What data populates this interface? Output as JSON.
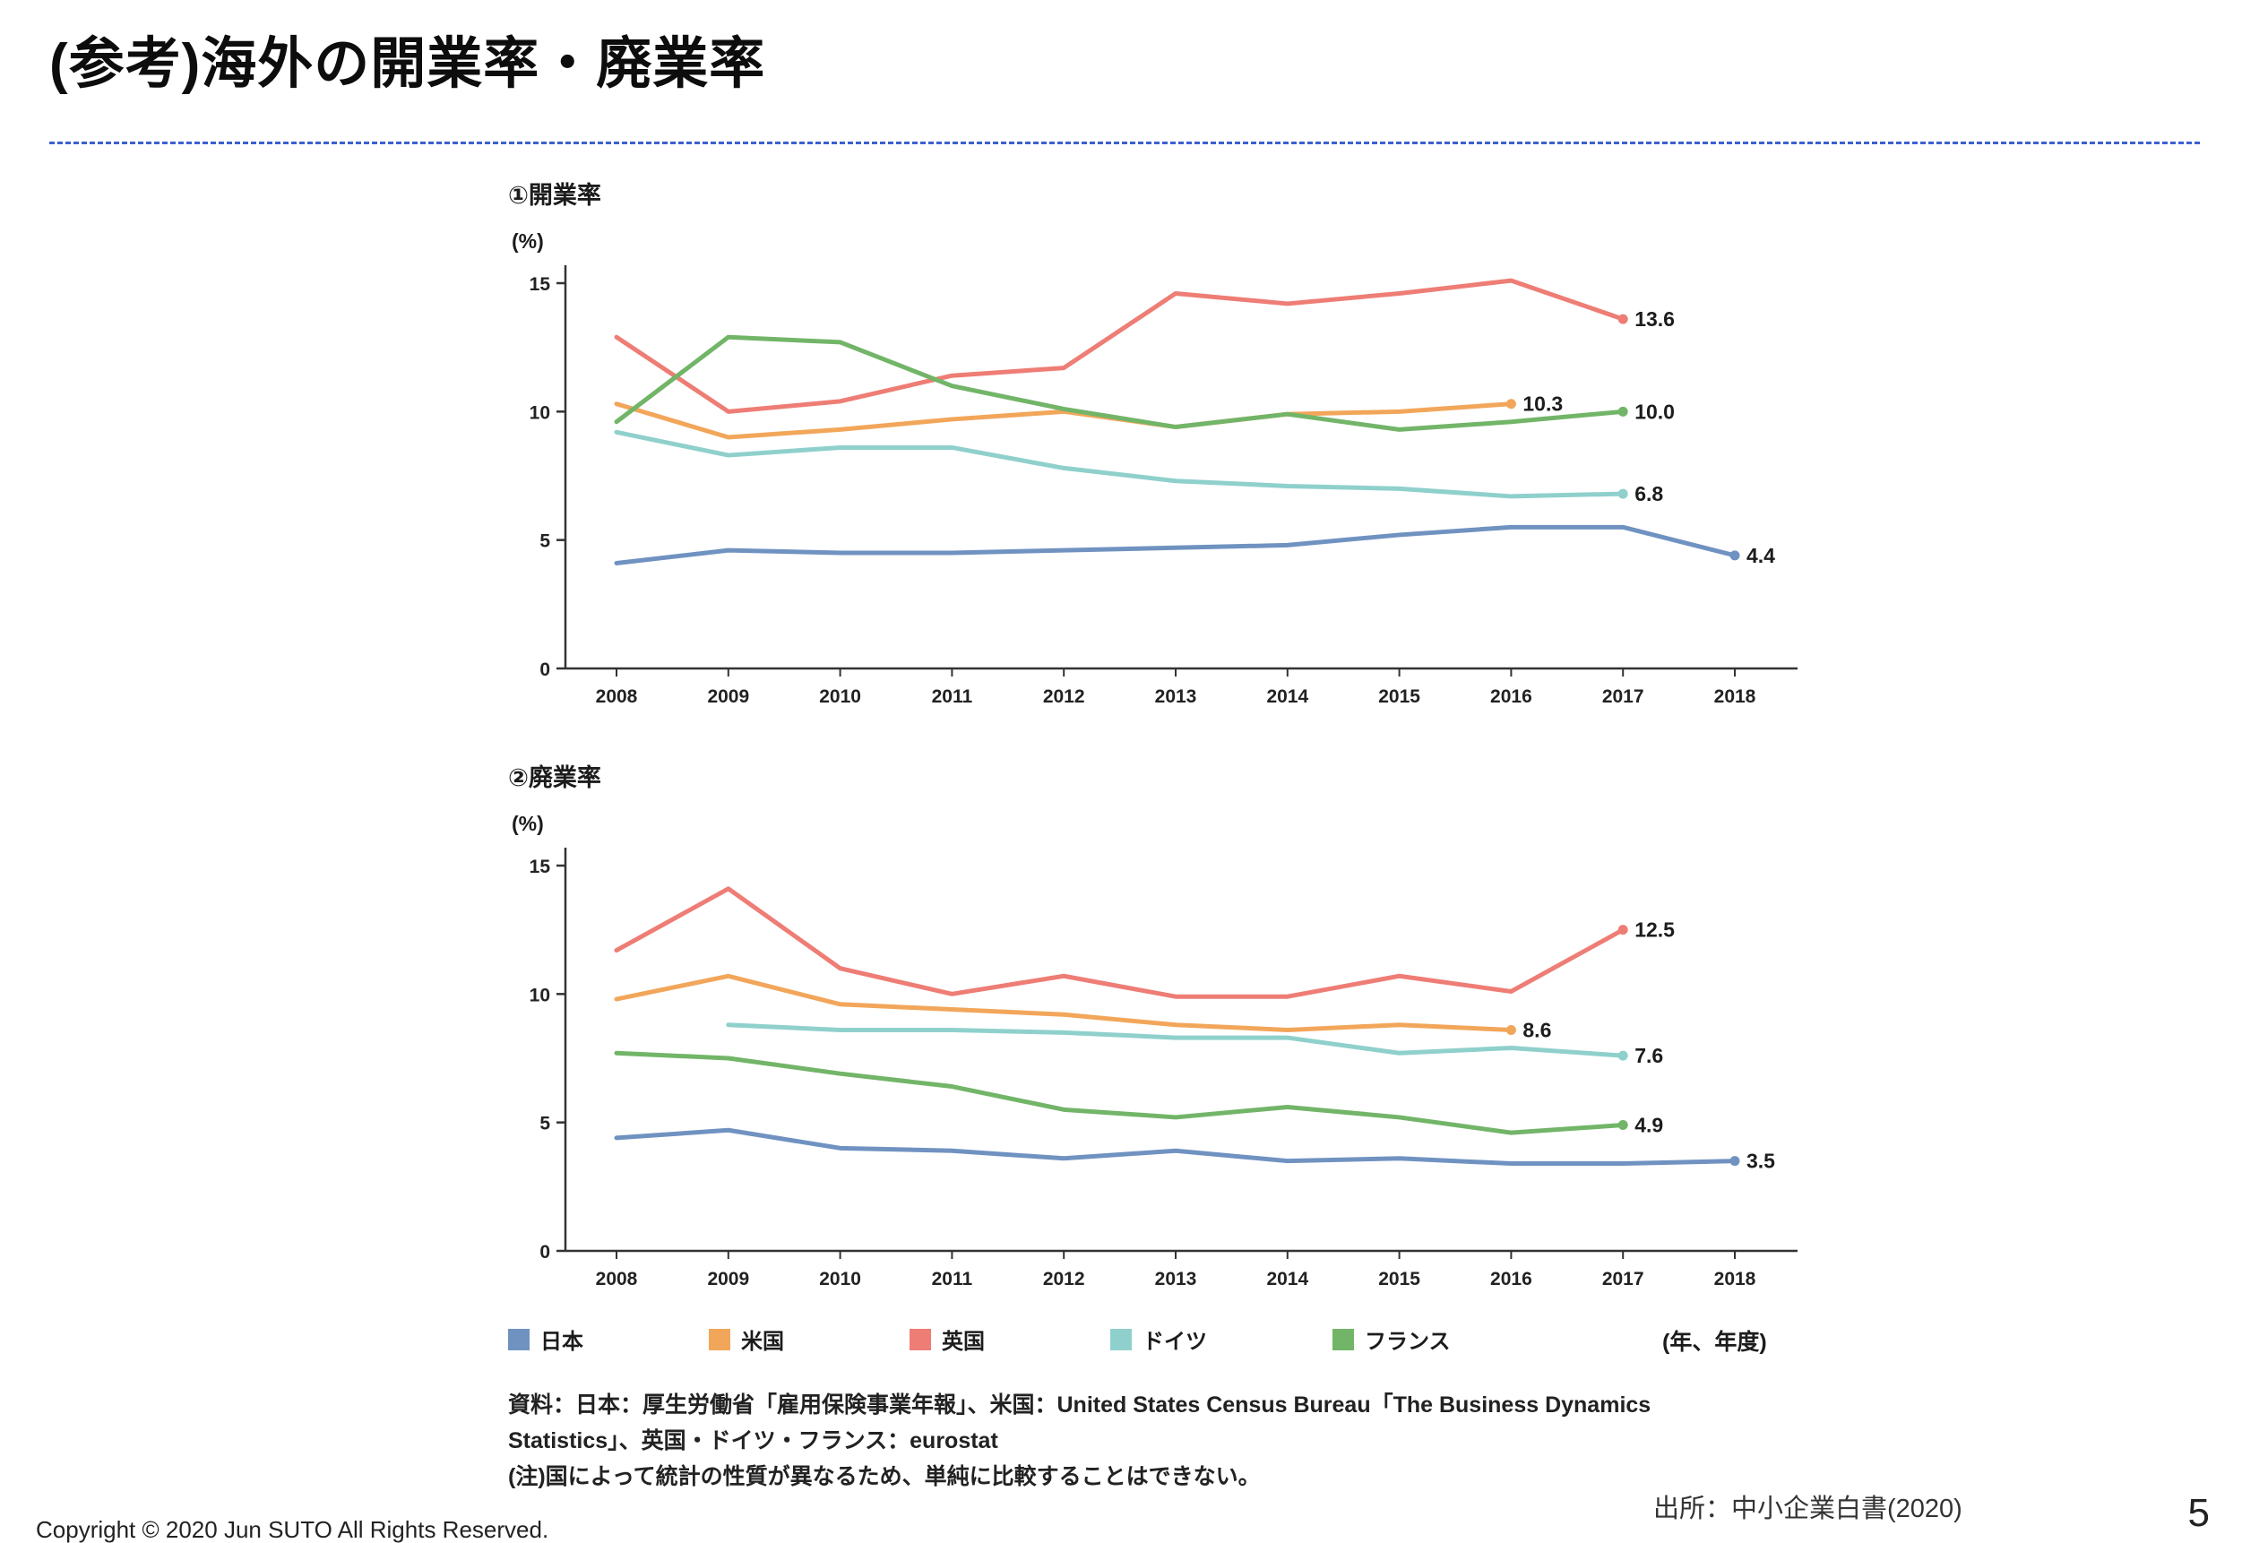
{
  "slide": {
    "title": "(参考)海外の開業率・廃業率",
    "axis_unit_note": "(年、年度)",
    "source": "出所：中小企業白書(2020)",
    "copyright": "Copyright © 2020 Jun SUTO All Rights Reserved.",
    "page_number": "5"
  },
  "legend": {
    "items": [
      {
        "label": "日本",
        "color": "#7092c1"
      },
      {
        "label": "米国",
        "color": "#f2a65a"
      },
      {
        "label": "英国",
        "color": "#ee7d75"
      },
      {
        "label": "ドイツ",
        "color": "#8fd0cc"
      },
      {
        "label": "フランス",
        "color": "#72b568"
      }
    ]
  },
  "notes": {
    "lines": [
      "資料：日本：厚生労働省「雇用保険事業年報」、米国：United States Census Bureau「The Business Dynamics",
      "Statistics」、英国・ドイツ・フランス：eurostat",
      "(注)国によって統計の性質が異なるため、単純に比較することはできない。"
    ]
  },
  "chart_data": [
    {
      "type": "line",
      "title": "①開業率",
      "ylabel": "(%)",
      "x": [
        "2008",
        "2009",
        "2010",
        "2011",
        "2012",
        "2013",
        "2014",
        "2015",
        "2016",
        "2017",
        "2018"
      ],
      "ylim": [
        0,
        15
      ],
      "yticks": [
        0,
        5,
        10,
        15
      ],
      "grid": false,
      "legend_position": "bottom",
      "series": [
        {
          "name": "日本",
          "color": "#7092c1",
          "values": [
            4.1,
            4.6,
            4.5,
            4.5,
            4.6,
            4.7,
            4.8,
            5.2,
            5.5,
            5.5,
            4.4
          ],
          "end_label": "4.4"
        },
        {
          "name": "米国",
          "color": "#f2a65a",
          "values": [
            10.3,
            9.0,
            9.3,
            9.7,
            10.0,
            9.4,
            9.9,
            10.0,
            10.3,
            null,
            null
          ],
          "end_label": "10.3"
        },
        {
          "name": "英国",
          "color": "#ee7d75",
          "values": [
            12.9,
            10.0,
            10.4,
            11.4,
            11.7,
            14.6,
            14.2,
            14.6,
            15.1,
            13.6,
            null
          ],
          "end_label": "13.6"
        },
        {
          "name": "ドイツ",
          "color": "#8fd0cc",
          "values": [
            9.2,
            8.3,
            8.6,
            8.6,
            7.8,
            7.3,
            7.1,
            7.0,
            6.7,
            6.8,
            null
          ],
          "end_label": "6.8"
        },
        {
          "name": "フランス",
          "color": "#72b568",
          "values": [
            9.6,
            12.9,
            12.7,
            11.0,
            10.1,
            9.4,
            9.9,
            9.3,
            9.6,
            10.0,
            null
          ],
          "end_label": "10.0"
        }
      ]
    },
    {
      "type": "line",
      "title": "②廃業率",
      "ylabel": "(%)",
      "x": [
        "2008",
        "2009",
        "2010",
        "2011",
        "2012",
        "2013",
        "2014",
        "2015",
        "2016",
        "2017",
        "2018"
      ],
      "ylim": [
        0,
        15
      ],
      "yticks": [
        0,
        5,
        10,
        15
      ],
      "grid": false,
      "legend_position": "bottom",
      "series": [
        {
          "name": "日本",
          "color": "#7092c1",
          "values": [
            4.4,
            4.7,
            4.0,
            3.9,
            3.6,
            3.9,
            3.5,
            3.6,
            3.4,
            3.4,
            3.5
          ],
          "end_label": "3.5"
        },
        {
          "name": "米国",
          "color": "#f2a65a",
          "values": [
            9.8,
            10.7,
            9.6,
            9.4,
            9.2,
            8.8,
            8.6,
            8.8,
            8.6,
            null,
            null
          ],
          "end_label": "8.6"
        },
        {
          "name": "英国",
          "color": "#ee7d75",
          "values": [
            11.7,
            14.1,
            11.0,
            10.0,
            10.7,
            9.9,
            9.9,
            10.7,
            10.1,
            12.5,
            null
          ],
          "end_label": "12.5"
        },
        {
          "name": "ドイツ",
          "color": "#8fd0cc",
          "values": [
            null,
            8.8,
            8.6,
            8.6,
            8.5,
            8.3,
            8.3,
            7.7,
            7.9,
            7.6,
            null
          ],
          "end_label": "7.6"
        },
        {
          "name": "フランス",
          "color": "#72b568",
          "values": [
            7.7,
            7.5,
            6.9,
            6.4,
            5.5,
            5.2,
            5.6,
            5.2,
            4.6,
            4.9,
            null
          ],
          "end_label": "4.9"
        }
      ]
    }
  ]
}
